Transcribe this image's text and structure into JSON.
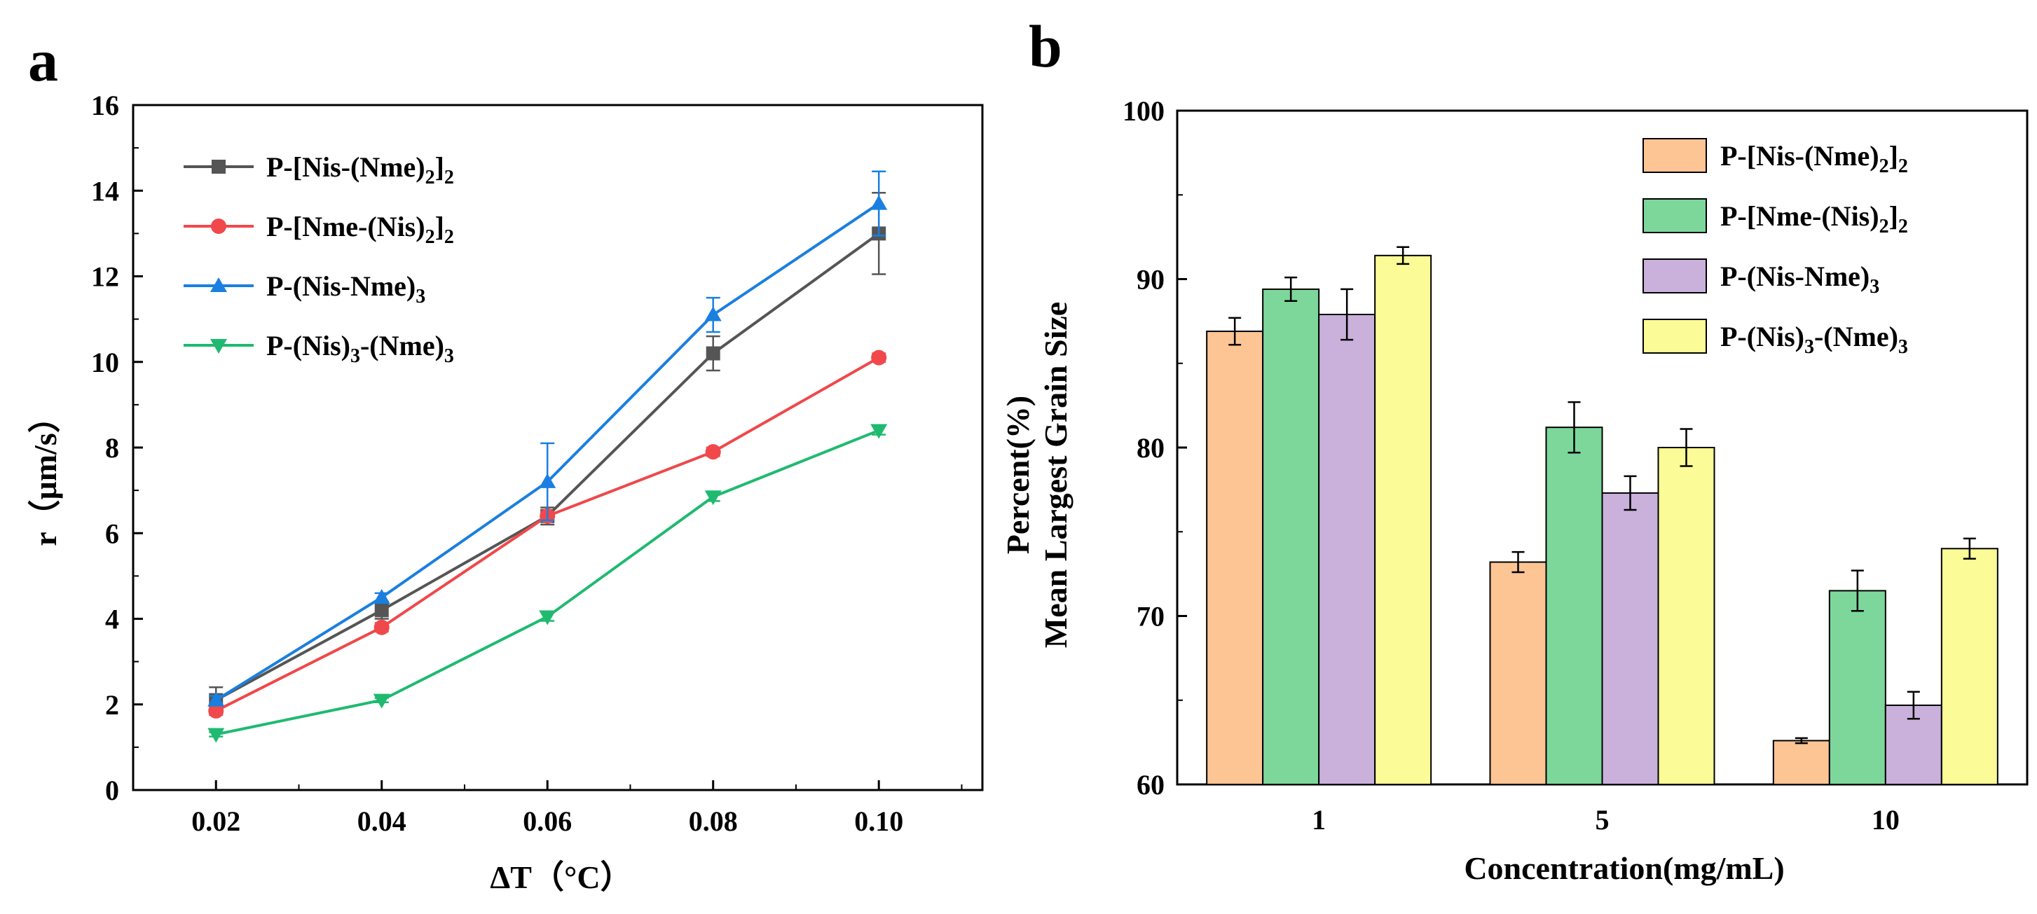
{
  "figure": {
    "panels": [
      "a",
      "b"
    ]
  },
  "chart_data": [
    {
      "panel": "a",
      "type": "line",
      "title": "",
      "xlabel": "ΔT（°C）",
      "ylabel": "r（μm/s）",
      "x": [
        0.02,
        0.04,
        0.06,
        0.08,
        0.1
      ],
      "x_tick_labels": [
        "0.02",
        "0.04",
        "0.06",
        "0.08",
        "0.10"
      ],
      "xlim": [
        0.01,
        0.1125
      ],
      "ylim": [
        0,
        16
      ],
      "y_ticks": [
        0,
        2,
        4,
        6,
        8,
        10,
        12,
        14,
        16
      ],
      "grid": false,
      "legend_position": "top-left",
      "series": [
        {
          "name": "P-[Nis-(Nme)2]2",
          "label_main": "P-[Nis-(Nme)",
          "subs": [
            "2",
            "]",
            "2"
          ],
          "color": "#555555",
          "marker": "square",
          "values": [
            2.1,
            4.2,
            6.4,
            10.2,
            13.0
          ],
          "errors": [
            0.3,
            0.2,
            0.2,
            0.4,
            0.95
          ]
        },
        {
          "name": "P-[Nme-(Nis)2]2",
          "label_main": "P-[Nme-(Nis)",
          "subs": [
            "2",
            "]",
            "2"
          ],
          "color": "#f0484b",
          "marker": "circle",
          "values": [
            1.85,
            3.8,
            6.4,
            7.9,
            10.1
          ],
          "errors": [
            0.1,
            0.1,
            0.1,
            0.1,
            0.1
          ]
        },
        {
          "name": "P-(Nis-Nme)3",
          "label_main": "P-(Nis-Nme)",
          "subs": [
            "3",
            "",
            ""
          ],
          "color": "#1a7fe0",
          "marker": "triangle-up",
          "values": [
            2.1,
            4.5,
            7.2,
            11.1,
            13.7
          ],
          "errors": [
            0.1,
            0.1,
            0.9,
            0.4,
            0.75
          ]
        },
        {
          "name": "P-(Nis)3-(Nme)3",
          "label_main": "P-(Nis)",
          "subs": [
            "3",
            "-(Nme)",
            "3"
          ],
          "color": "#1fba70",
          "marker": "triangle-down",
          "values": [
            1.3,
            2.1,
            4.05,
            6.85,
            8.4
          ],
          "errors": [
            0.05,
            0.05,
            0.1,
            0.1,
            0.1
          ]
        }
      ]
    },
    {
      "panel": "b",
      "type": "bar",
      "title": "",
      "xlabel": "Concentration(mg/mL)",
      "ylabel_line1": "Percent(%)",
      "ylabel_line2": "Mean Largest Grain Size",
      "categories": [
        "1",
        "5",
        "10"
      ],
      "ylim": [
        60,
        100
      ],
      "y_ticks": [
        60,
        70,
        80,
        90,
        100
      ],
      "grid": false,
      "legend_position": "top-right",
      "series": [
        {
          "name": "P-[Nis-(Nme)2]2",
          "label_main": "P-[Nis-(Nme)",
          "subs": [
            "2",
            "]",
            "2"
          ],
          "color": "#fdc594",
          "values": [
            86.9,
            73.2,
            62.6
          ],
          "errors": [
            0.8,
            0.6,
            0.15
          ]
        },
        {
          "name": "P-[Nme-(Nis)2]2",
          "label_main": "P-[Nme-(Nis)",
          "subs": [
            "2",
            "]",
            "2"
          ],
          "color": "#7dd79b",
          "values": [
            89.4,
            81.2,
            71.5
          ],
          "errors": [
            0.7,
            1.5,
            1.2
          ]
        },
        {
          "name": "P-(Nis-Nme)3",
          "label_main": "P-(Nis-Nme)",
          "subs": [
            "3",
            "",
            ""
          ],
          "color": "#c9b1dc",
          "values": [
            87.9,
            77.3,
            64.7
          ],
          "errors": [
            1.5,
            1.0,
            0.8
          ]
        },
        {
          "name": "P-(Nis)3-(Nme)3",
          "label_main": "P-(Nis)",
          "subs": [
            "3",
            "-(Nme)",
            "3"
          ],
          "color": "#fbfb97",
          "values": [
            91.4,
            80.0,
            74.0
          ],
          "errors": [
            0.5,
            1.1,
            0.6
          ]
        }
      ]
    }
  ]
}
